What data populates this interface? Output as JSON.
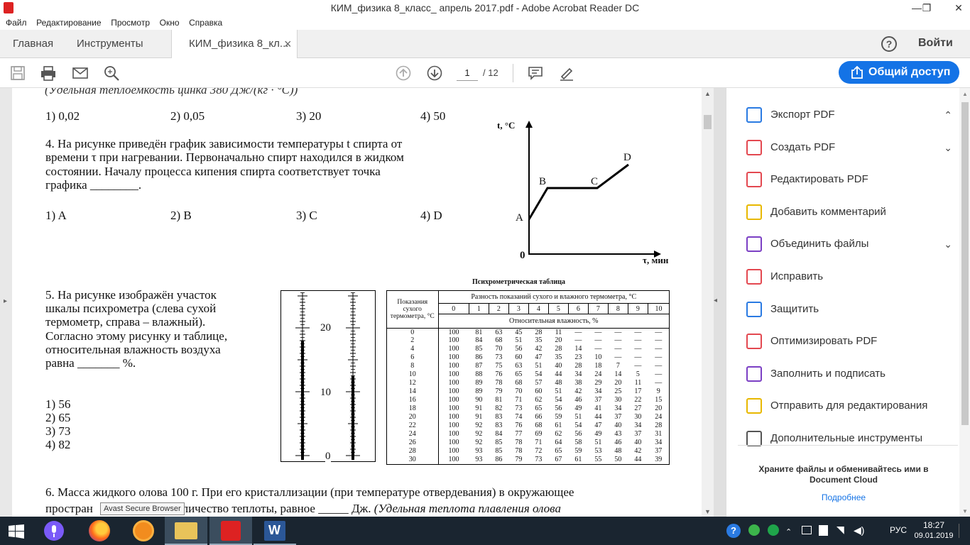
{
  "window": {
    "title": "КИМ_физика 8_класс_ апрель 2017.pdf - Adobe Acrobat Reader DC",
    "minimize": "—",
    "restore": "❐",
    "close": "✕"
  },
  "menu": [
    "Файл",
    "Редактирование",
    "Просмотр",
    "Окно",
    "Справка"
  ],
  "tabs": {
    "home": "Главная",
    "tools": "Инструменты",
    "doc": "КИМ_физика 8_кл...",
    "doc_close": "×",
    "help": "?",
    "signin": "Войти"
  },
  "toolbar": {
    "page_current": "1",
    "page_total": "/ 12",
    "share": "Общий доступ"
  },
  "document": {
    "top_cut": "(Удельная теплоемкость цинка 380 Дж/(кг · °С))",
    "q3_answers": [
      "1) 0,02",
      "2) 0,05",
      "3) 20",
      "4) 50"
    ],
    "q4_lines": [
      "4. На рисунке приведён график зависимости температуры t спирта от",
      "времени τ при нагревании. Первоначально спирт находился в жидком",
      "состоянии.  Началу  процесса  кипения  спирта  соответствует  точка",
      "графика ________."
    ],
    "q4_answers": [
      "1) A",
      "2) B",
      "3) C",
      "4) D"
    ],
    "graph": {
      "y_label": "t, °C",
      "x_label": "τ, мин",
      "origin": "0",
      "points": [
        "A",
        "B",
        "C",
        "D"
      ]
    },
    "q5_lines": [
      "5. На рисунке изображён участок",
      "шкалы психрометра (слева сухой",
      "термометр,  справа  –  влажный).",
      "Согласно этому рисунку и таблице,",
      "относительная  влажность  воздуха",
      "равна _______ %."
    ],
    "q5_answers": [
      "1) 56",
      "2) 65",
      "3) 73",
      "4) 82"
    ],
    "thermo_labels": [
      "20",
      "10",
      "0"
    ],
    "table": {
      "title": "Психрометрическая таблица",
      "col1_header": "Показания сухого термометра, °С",
      "diff_header": "Разность показаний сухого и влажного термометра, °С",
      "diff_cols": [
        "0",
        "1",
        "2",
        "3",
        "4",
        "5",
        "6",
        "7",
        "8",
        "9",
        "10"
      ],
      "humidity_header": "Относительная влажность, %",
      "rows": [
        [
          "0",
          "100",
          "81",
          "63",
          "45",
          "28",
          "11",
          "—",
          "—",
          "—",
          "—",
          "—"
        ],
        [
          "2",
          "100",
          "84",
          "68",
          "51",
          "35",
          "20",
          "—",
          "—",
          "—",
          "—",
          "—"
        ],
        [
          "4",
          "100",
          "85",
          "70",
          "56",
          "42",
          "28",
          "14",
          "—",
          "—",
          "—",
          "—"
        ],
        [
          "6",
          "100",
          "86",
          "73",
          "60",
          "47",
          "35",
          "23",
          "10",
          "—",
          "—",
          "—"
        ],
        [
          "8",
          "100",
          "87",
          "75",
          "63",
          "51",
          "40",
          "28",
          "18",
          "7",
          "—",
          "—"
        ],
        [
          "10",
          "100",
          "88",
          "76",
          "65",
          "54",
          "44",
          "34",
          "24",
          "14",
          "5",
          "—"
        ],
        [
          "12",
          "100",
          "89",
          "78",
          "68",
          "57",
          "48",
          "38",
          "29",
          "20",
          "11",
          "—"
        ],
        [
          "14",
          "100",
          "89",
          "79",
          "70",
          "60",
          "51",
          "42",
          "34",
          "25",
          "17",
          "9"
        ],
        [
          "16",
          "100",
          "90",
          "81",
          "71",
          "62",
          "54",
          "46",
          "37",
          "30",
          "22",
          "15"
        ],
        [
          "18",
          "100",
          "91",
          "82",
          "73",
          "65",
          "56",
          "49",
          "41",
          "34",
          "27",
          "20"
        ],
        [
          "20",
          "100",
          "91",
          "83",
          "74",
          "66",
          "59",
          "51",
          "44",
          "37",
          "30",
          "24"
        ],
        [
          "22",
          "100",
          "92",
          "83",
          "76",
          "68",
          "61",
          "54",
          "47",
          "40",
          "34",
          "28"
        ],
        [
          "24",
          "100",
          "92",
          "84",
          "77",
          "69",
          "62",
          "56",
          "49",
          "43",
          "37",
          "31"
        ],
        [
          "26",
          "100",
          "92",
          "85",
          "78",
          "71",
          "64",
          "58",
          "51",
          "46",
          "40",
          "34"
        ],
        [
          "28",
          "100",
          "93",
          "85",
          "78",
          "72",
          "65",
          "59",
          "53",
          "48",
          "42",
          "37"
        ],
        [
          "30",
          "100",
          "93",
          "86",
          "79",
          "73",
          "67",
          "61",
          "55",
          "50",
          "44",
          "39"
        ]
      ]
    },
    "q6_line1": "6. Масса жидкого олова 100 г. При его кристаллизации (при температуре отвердевания) в окружающее",
    "q6_line2_a": "простран",
    "q6_line2_b": "я количество теплоты, равное _____ Дж.",
    "q6_line2_c": "(Удельная теплота плавления олова"
  },
  "right_pane": {
    "items": [
      {
        "label": "Экспорт PDF",
        "color": "#2a7ae2",
        "chev": "⌃"
      },
      {
        "label": "Создать PDF",
        "color": "#e34850",
        "chev": "⌄"
      },
      {
        "label": "Редактировать PDF",
        "color": "#e34850",
        "chev": ""
      },
      {
        "label": "Добавить комментарий",
        "color": "#e8b800",
        "chev": ""
      },
      {
        "label": "Объединить файлы",
        "color": "#7b3fc4",
        "chev": "⌄"
      },
      {
        "label": "Исправить",
        "color": "#e34850",
        "chev": ""
      },
      {
        "label": "Защитить",
        "color": "#2a7ae2",
        "chev": ""
      },
      {
        "label": "Оптимизировать PDF",
        "color": "#e34850",
        "chev": ""
      },
      {
        "label": "Заполнить и подписать",
        "color": "#7b3fc4",
        "chev": ""
      },
      {
        "label": "Отправить для редактирования",
        "color": "#e8b800",
        "chev": ""
      },
      {
        "label": "Дополнительные инструменты",
        "color": "#555555",
        "chev": ""
      }
    ],
    "cloud_text_1": "Храните файлы и обменивайтесь ими в",
    "cloud_text_2": "Document Cloud",
    "more_link": "Подробнее"
  },
  "tooltip": "Avast Secure Browser",
  "taskbar": {
    "lang": "РУС",
    "time": "18:27",
    "date": "09.01.2019"
  }
}
